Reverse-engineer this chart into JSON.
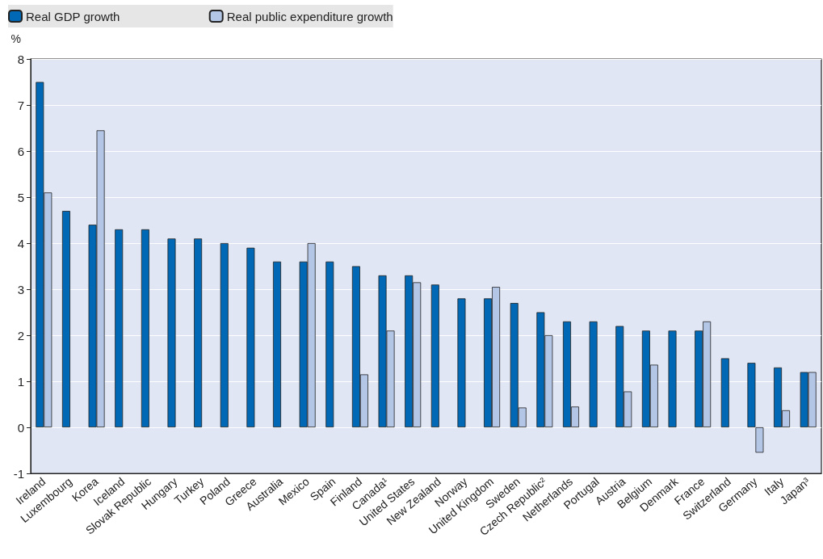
{
  "chart_data": {
    "type": "bar",
    "ylabel": "%",
    "categories": [
      "Ireland",
      "Luxembourg",
      "Korea",
      "Iceland",
      "Slovak Republic",
      "Hungary",
      "Turkey",
      "Poland",
      "Greece",
      "Australia",
      "Mexico",
      "Spain",
      "Finland",
      "Canada¹",
      "United States",
      "New Zealand",
      "Norway",
      "United Kingdom",
      "Sweden",
      "Czech Republic²",
      "Netherlands",
      "Portugal",
      "Austria",
      "Belgium",
      "Denmark",
      "France",
      "Switzerland",
      "Germany",
      "Italy",
      "Japan³"
    ],
    "series": [
      {
        "name": "Real GDP growth",
        "color": "#0068b4",
        "values": [
          7.5,
          4.7,
          4.4,
          4.3,
          4.3,
          4.1,
          4.1,
          4.0,
          3.9,
          3.6,
          3.6,
          3.6,
          3.5,
          3.3,
          3.3,
          3.1,
          2.8,
          2.8,
          2.7,
          2.5,
          2.3,
          2.3,
          2.2,
          2.1,
          2.1,
          2.1,
          1.5,
          1.4,
          1.3,
          1.2
        ]
      },
      {
        "name": "Real public expenditure growth",
        "color": "#b4c6e6",
        "values": [
          5.1,
          null,
          6.45,
          null,
          null,
          null,
          null,
          null,
          null,
          null,
          4.0,
          null,
          1.15,
          2.1,
          3.15,
          null,
          null,
          3.05,
          0.43,
          2.0,
          0.45,
          null,
          0.78,
          1.36,
          null,
          2.3,
          null,
          -0.55,
          0.37,
          1.2
        ]
      }
    ],
    "ylim": [
      -1,
      8
    ],
    "yticks": [
      -1,
      0,
      1,
      2,
      3,
      4,
      5,
      6,
      7,
      8
    ],
    "grid": "y",
    "legend": "top"
  }
}
